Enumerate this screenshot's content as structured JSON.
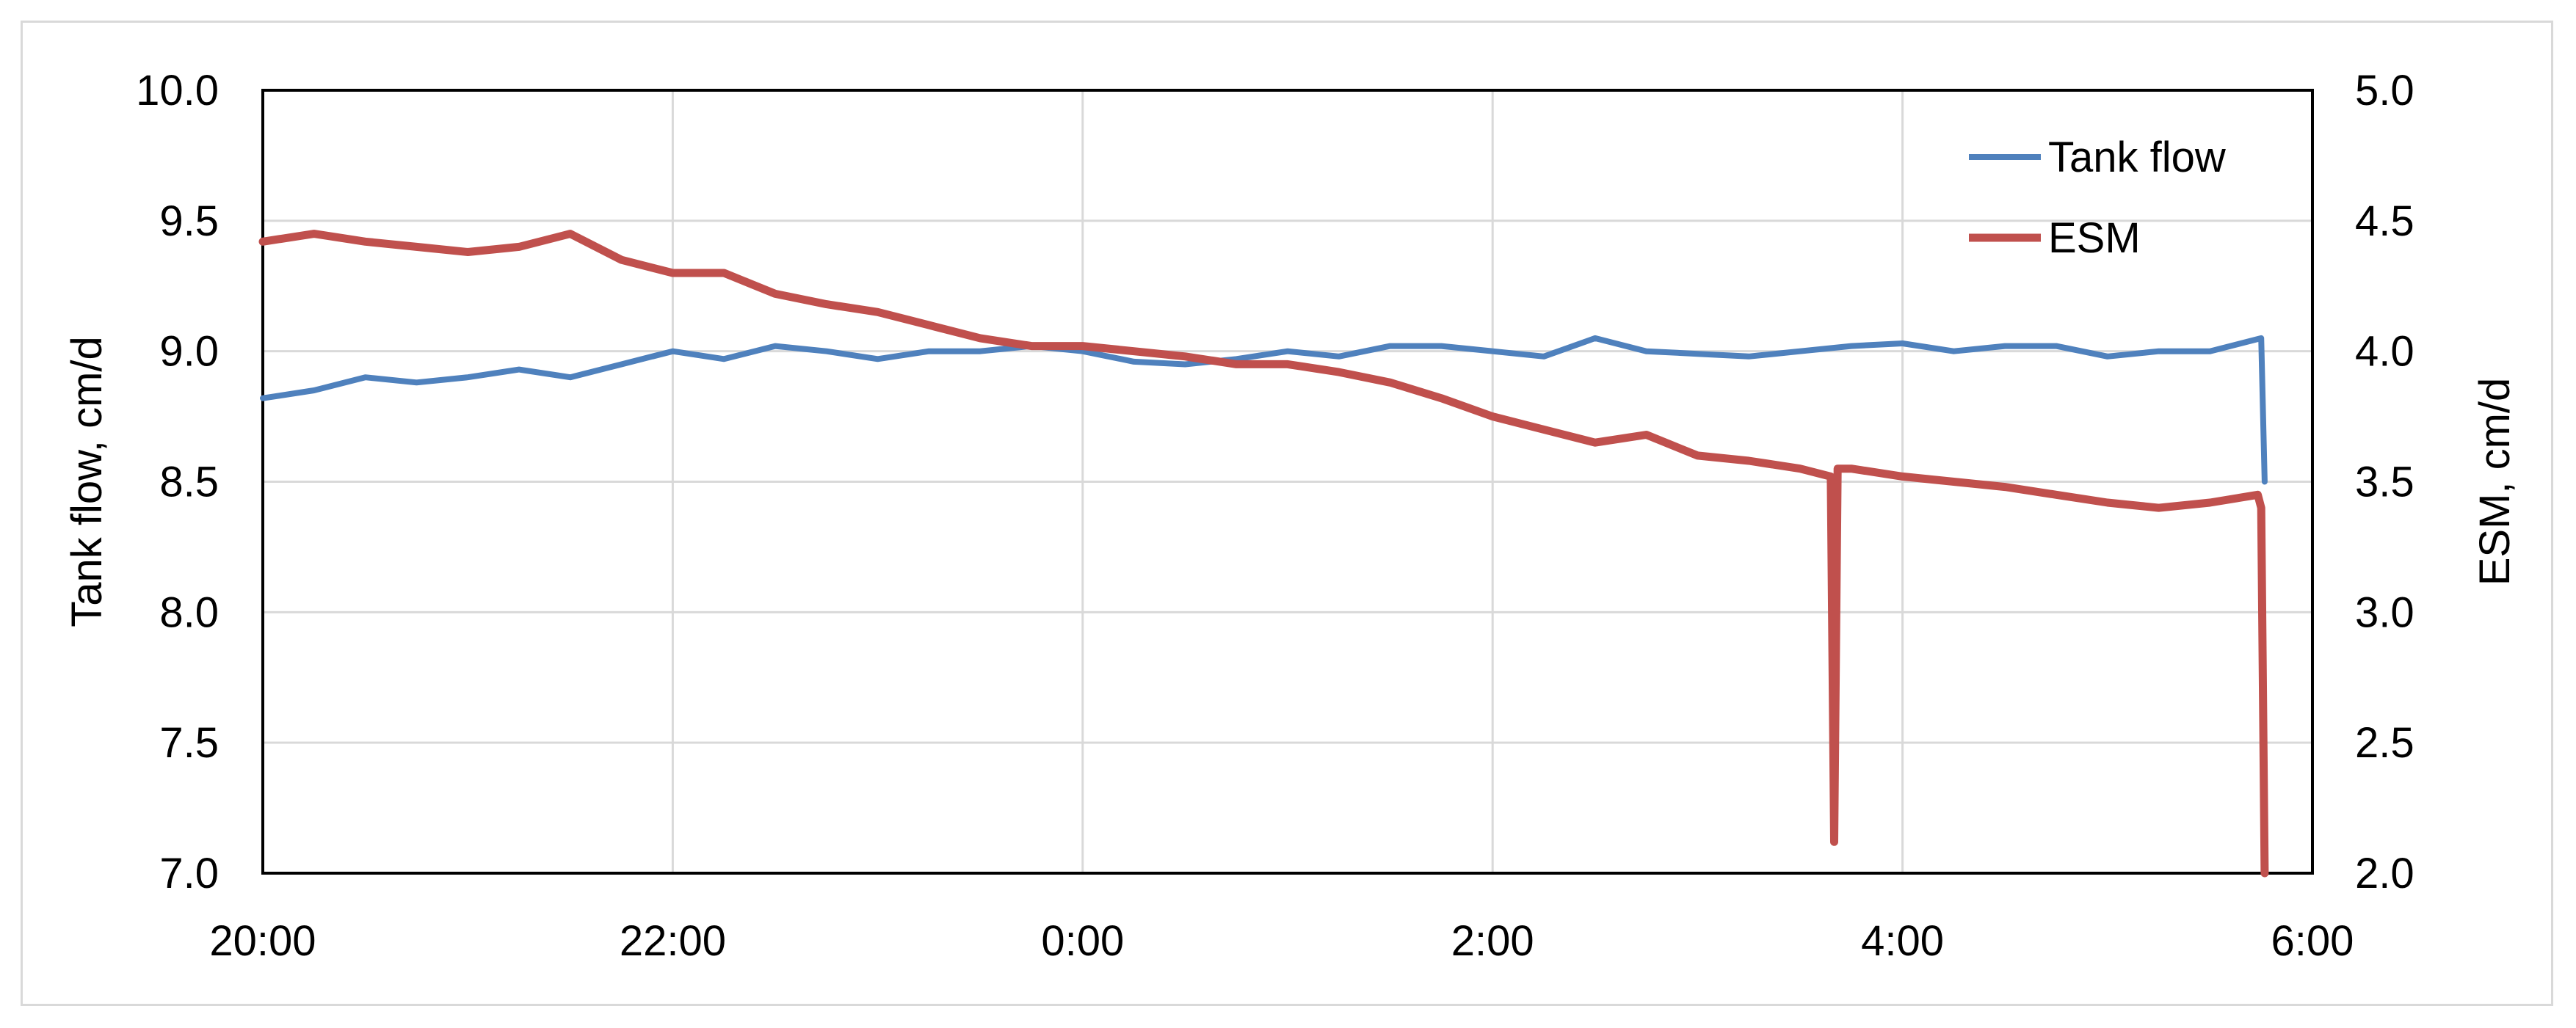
{
  "chart_data": {
    "type": "line",
    "title": "",
    "xlabel": "",
    "ylabel": "Tank flow, cm/d",
    "y2label": "ESM, cm/d",
    "x_ticks": [
      "20:00",
      "22:00",
      "0:00",
      "2:00",
      "4:00",
      "6:00"
    ],
    "xlim": [
      "20:00",
      "6:00"
    ],
    "ylim": [
      7.0,
      10.0
    ],
    "y_ticks": [
      "7.0",
      "7.5",
      "8.0",
      "8.5",
      "9.0",
      "9.5",
      "10.0"
    ],
    "y2lim": [
      2.0,
      5.0
    ],
    "y2_ticks": [
      "2.0",
      "2.5",
      "3.0",
      "3.5",
      "4.0",
      "4.5",
      "5.0"
    ],
    "grid": true,
    "legend": "top-right",
    "series": [
      {
        "name": "Tank flow",
        "axis": "left",
        "color": "#4f81bd",
        "x": [
          "20:00",
          "20:15",
          "20:30",
          "20:45",
          "21:00",
          "21:15",
          "21:30",
          "21:45",
          "22:00",
          "22:15",
          "22:30",
          "22:45",
          "23:00",
          "23:15",
          "23:30",
          "23:45",
          "0:00",
          "0:15",
          "0:30",
          "0:45",
          "1:00",
          "1:15",
          "1:30",
          "1:45",
          "2:00",
          "2:15",
          "2:30",
          "2:45",
          "3:00",
          "3:15",
          "3:30",
          "3:45",
          "4:00",
          "4:15",
          "4:30",
          "4:45",
          "5:00",
          "5:15",
          "5:30",
          "5:45",
          "5:46"
        ],
        "values": [
          8.82,
          8.85,
          8.9,
          8.88,
          8.9,
          8.93,
          8.9,
          8.95,
          9.0,
          8.97,
          9.02,
          9.0,
          8.97,
          9.0,
          9.0,
          9.02,
          9.0,
          8.96,
          8.95,
          8.97,
          9.0,
          8.98,
          9.02,
          9.02,
          9.0,
          8.98,
          9.05,
          9.0,
          8.99,
          8.98,
          9.0,
          9.02,
          9.03,
          9.0,
          9.02,
          9.02,
          8.98,
          9.0,
          9.0,
          9.05,
          8.5
        ]
      },
      {
        "name": "ESM",
        "axis": "right",
        "color": "#c0504d",
        "x": [
          "20:00",
          "20:15",
          "20:30",
          "20:45",
          "21:00",
          "21:15",
          "21:30",
          "21:45",
          "22:00",
          "22:15",
          "22:30",
          "22:45",
          "23:00",
          "23:15",
          "23:30",
          "23:45",
          "0:00",
          "0:15",
          "0:30",
          "0:45",
          "1:00",
          "1:15",
          "1:30",
          "1:45",
          "2:00",
          "2:15",
          "2:30",
          "2:45",
          "3:00",
          "3:15",
          "3:30",
          "3:39",
          "3:40",
          "3:41",
          "3:45",
          "4:00",
          "4:15",
          "4:30",
          "4:45",
          "5:00",
          "5:15",
          "5:30",
          "5:44",
          "5:45",
          "5:46"
        ],
        "values": [
          4.42,
          4.45,
          4.42,
          4.4,
          4.38,
          4.4,
          4.45,
          4.35,
          4.3,
          4.3,
          4.22,
          4.18,
          4.15,
          4.1,
          4.05,
          4.02,
          4.02,
          4.0,
          3.98,
          3.95,
          3.95,
          3.92,
          3.88,
          3.82,
          3.75,
          3.7,
          3.65,
          3.68,
          3.6,
          3.58,
          3.55,
          3.52,
          2.12,
          3.55,
          3.55,
          3.52,
          3.5,
          3.48,
          3.45,
          3.42,
          3.4,
          3.42,
          3.45,
          3.4,
          2.0
        ]
      }
    ]
  }
}
